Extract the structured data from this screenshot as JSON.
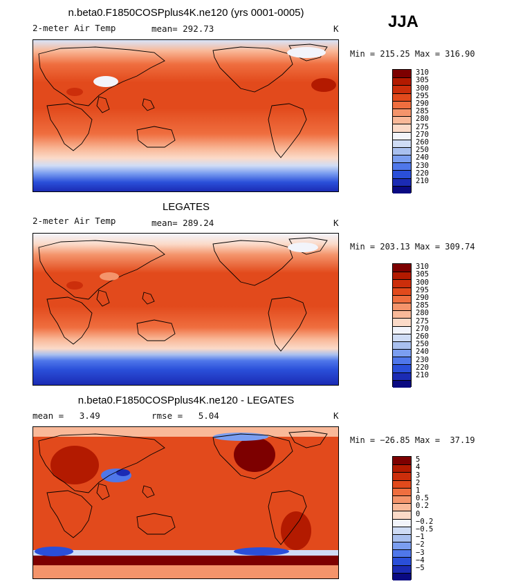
{
  "season": "JJA",
  "chart_data": [
    {
      "type": "heatmap",
      "title": "n.beta0.F1850COSPplus4K.ne120 (yrs 0001-0005)",
      "variable": "2-meter Air Temp",
      "mean_label": "mean= 292.73",
      "units": "K",
      "min_max": "Min = 215.25 Max = 316.90",
      "stats": {
        "mean": 292.73,
        "min": 215.25,
        "max": 316.9
      },
      "colorbar": {
        "levels": [
          "310",
          "305",
          "300",
          "295",
          "290",
          "285",
          "280",
          "275",
          "270",
          "260",
          "250",
          "240",
          "230",
          "220",
          "210"
        ],
        "colors": [
          "#7d0000",
          "#b31a00",
          "#cc2e0b",
          "#e24a1c",
          "#ef6e3f",
          "#f4946b",
          "#f9b999",
          "#fbdac8",
          "#f2f4fb",
          "#cfdcf5",
          "#a9c0ef",
          "#7b9ef0",
          "#4f77ea",
          "#2a4fd9",
          "#1b2bb4",
          "#0a0a82"
        ]
      }
    },
    {
      "type": "heatmap",
      "title": "LEGATES",
      "variable": "2-meter Air Temp",
      "mean_label": "mean= 289.24",
      "units": "K",
      "min_max": "Min = 203.13 Max = 309.74",
      "stats": {
        "mean": 289.24,
        "min": 203.13,
        "max": 309.74
      },
      "colorbar": {
        "levels": [
          "310",
          "305",
          "300",
          "295",
          "290",
          "285",
          "280",
          "275",
          "270",
          "260",
          "250",
          "240",
          "230",
          "220",
          "210"
        ],
        "colors": [
          "#7d0000",
          "#b31a00",
          "#cc2e0b",
          "#e24a1c",
          "#ef6e3f",
          "#f4946b",
          "#f9b999",
          "#fbdac8",
          "#f2f4fb",
          "#cfdcf5",
          "#a9c0ef",
          "#7b9ef0",
          "#4f77ea",
          "#2a4fd9",
          "#1b2bb4",
          "#0a0a82"
        ]
      }
    },
    {
      "type": "heatmap",
      "title": "n.beta0.F1850COSPplus4K.ne120 - LEGATES",
      "variable": "mean =   3.49",
      "mean_label": "rmse =   5.04",
      "units": "K",
      "min_max": "Min = −26.85 Max =  37.19",
      "stats": {
        "mean": 3.49,
        "rmse": 5.04,
        "min": -26.85,
        "max": 37.19
      },
      "colorbar": {
        "levels": [
          "5",
          "4",
          "3",
          "2",
          "1",
          "0.5",
          "0.2",
          "0",
          "−0.2",
          "−0.5",
          "−1",
          "−2",
          "−3",
          "−4",
          "−5"
        ],
        "colors": [
          "#7d0000",
          "#b31a00",
          "#cc2e0b",
          "#e24a1c",
          "#ef6e3f",
          "#f4946b",
          "#f9b999",
          "#fbdac8",
          "#f2f4fb",
          "#cfdcf5",
          "#a9c0ef",
          "#7b9ef0",
          "#4f77ea",
          "#2a4fd9",
          "#1b2bb4",
          "#0a0a82"
        ]
      }
    }
  ]
}
